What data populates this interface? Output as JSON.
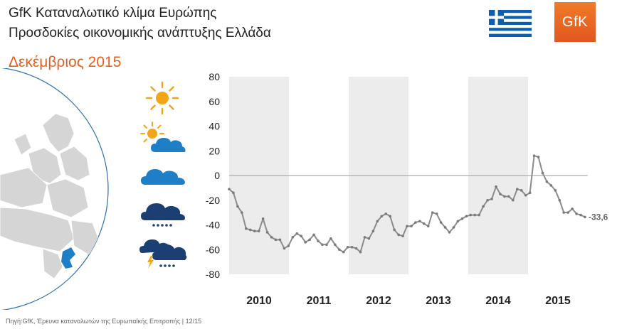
{
  "header": {
    "title_line1": "GfK Καταναλωτικό κλίμα Ευρώπης",
    "title_line2": "Προσδοκίες οικονομικής ανάπτυξης Ελλάδα",
    "period": "Δεκέμβριος 2015",
    "logo_text": "GfK"
  },
  "footer": {
    "source": "Πηγή:GfK,  Έρευνα καταναλωτών της  Ευρωπαϊκής Επιτροπής | 12/15"
  },
  "colors": {
    "title": "#222222",
    "period": "#e0601f",
    "line": "#8c8c8c",
    "shade": "#ececec",
    "zero_line": "#9a9a9a",
    "icon_sun": "#f2a516",
    "icon_cloud": "#1f7fc6",
    "icon_storm": "#1c3f73",
    "logo": "#e8661f",
    "flag_blue": "#0d5eaf"
  },
  "icons": [
    "sun-icon",
    "sun-behind-cloud-icon",
    "cloud-icon",
    "rain-cloud-icon",
    "storm-cloud-icon"
  ],
  "chart_data": {
    "type": "line",
    "title": "",
    "xlabel": "",
    "ylabel": "",
    "ylim": [
      -80,
      80
    ],
    "yticks": [
      80,
      60,
      40,
      20,
      0,
      -20,
      -40,
      -60,
      -80
    ],
    "year_labels": [
      "2010",
      "2011",
      "2012",
      "2013",
      "2014",
      "2015"
    ],
    "shaded_years": [
      "2010",
      "2012",
      "2014"
    ],
    "reference_line": 0,
    "end_label": "-33,6",
    "grid": false,
    "series": [
      {
        "values": [
          -11,
          -14,
          -25,
          -30,
          -43,
          -44,
          -45,
          -45,
          -35,
          -46,
          -50,
          -52,
          -52,
          -59,
          -57,
          -50,
          -47,
          -49,
          -54,
          -52,
          -48,
          -53,
          -56,
          -56,
          -51,
          -56,
          -60,
          -62,
          -58,
          -58,
          -59,
          -62,
          -50,
          -51,
          -45,
          -37,
          -33,
          -31,
          -33,
          -44,
          -48,
          -49,
          -41,
          -41,
          -38,
          -37,
          -39,
          -41,
          -30,
          -31,
          -38,
          -42,
          -46,
          -42,
          -37,
          -35,
          -33,
          -32,
          -32,
          -32,
          -25,
          -20,
          -19,
          -9,
          -15,
          -17,
          -17,
          -20,
          -11,
          -12,
          -16,
          -14,
          16,
          15,
          2,
          -5,
          -8,
          -12,
          -20,
          -30,
          -30,
          -27,
          -31,
          -32,
          -33.6
        ]
      }
    ]
  }
}
